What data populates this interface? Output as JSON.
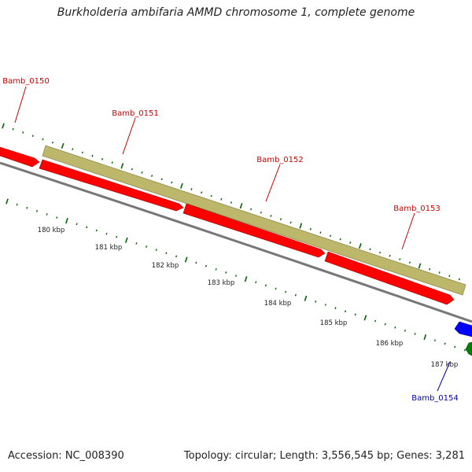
{
  "title": "Burkholderia ambifaria AMMD chromosome 1, complete genome",
  "footer": {
    "accession": "Accession: NC_008390",
    "topology": "Topology: circular; Length: 3,556,545 bp; Genes: 3,281"
  },
  "colors": {
    "forward_gene": "#ff0000",
    "reverse_gene": "#0000ff",
    "other_feature": "#008000",
    "cds_band": "#bdb76b",
    "backbone": "#808080",
    "tick_marks": "#006400",
    "forward_label": "#cc0000",
    "reverse_label": "#0000aa"
  },
  "genes": [
    {
      "name": "Bamb_0150",
      "strand": "+",
      "color": "#cc0000"
    },
    {
      "name": "Bamb_0151",
      "strand": "+",
      "color": "#cc0000"
    },
    {
      "name": "Bamb_0152",
      "strand": "+",
      "color": "#cc0000"
    },
    {
      "name": "Bamb_0153",
      "strand": "+",
      "color": "#cc0000"
    },
    {
      "name": "Bamb_0154",
      "strand": "-",
      "color": "#0000aa"
    }
  ],
  "ruler": [
    "180 kbp",
    "181 kbp",
    "182 kbp",
    "183 kbp",
    "184 kbp",
    "185 kbp",
    "186 kbp",
    "187 kbp"
  ]
}
